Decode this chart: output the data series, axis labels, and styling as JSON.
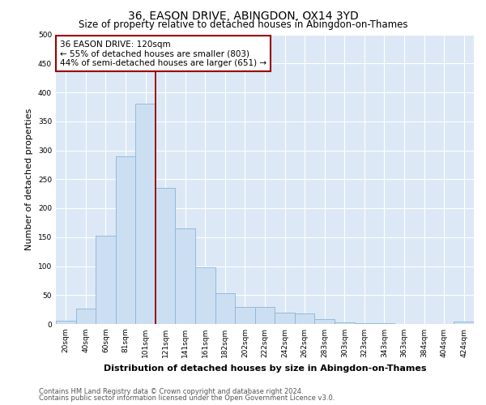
{
  "title": "36, EASON DRIVE, ABINGDON, OX14 3YD",
  "subtitle": "Size of property relative to detached houses in Abingdon-on-Thames",
  "xlabel": "Distribution of detached houses by size in Abingdon-on-Thames",
  "ylabel": "Number of detached properties",
  "categories": [
    "20sqm",
    "40sqm",
    "60sqm",
    "81sqm",
    "101sqm",
    "121sqm",
    "141sqm",
    "161sqm",
    "182sqm",
    "202sqm",
    "222sqm",
    "242sqm",
    "262sqm",
    "283sqm",
    "303sqm",
    "323sqm",
    "343sqm",
    "363sqm",
    "384sqm",
    "404sqm",
    "424sqm"
  ],
  "values": [
    5,
    27,
    153,
    289,
    380,
    235,
    165,
    98,
    53,
    30,
    30,
    20,
    18,
    8,
    3,
    2,
    1,
    0,
    0,
    0,
    4
  ],
  "bar_color": "#ccdff2",
  "bar_edge_color": "#8ab4d8",
  "vline_x": 4.5,
  "vline_color": "#990000",
  "annotation_text": "36 EASON DRIVE: 120sqm\n← 55% of detached houses are smaller (803)\n44% of semi-detached houses are larger (651) →",
  "annotation_box_color": "#ffffff",
  "annotation_box_edge_color": "#990000",
  "ylim": [
    0,
    500
  ],
  "yticks": [
    0,
    50,
    100,
    150,
    200,
    250,
    300,
    350,
    400,
    450,
    500
  ],
  "plot_bg_color": "#dce8f5",
  "footer_line1": "Contains HM Land Registry data © Crown copyright and database right 2024.",
  "footer_line2": "Contains public sector information licensed under the Open Government Licence v3.0.",
  "title_fontsize": 10,
  "subtitle_fontsize": 8.5,
  "tick_fontsize": 6.5,
  "ylabel_fontsize": 8,
  "xlabel_fontsize": 8,
  "footer_fontsize": 6,
  "annot_fontsize": 7.5
}
